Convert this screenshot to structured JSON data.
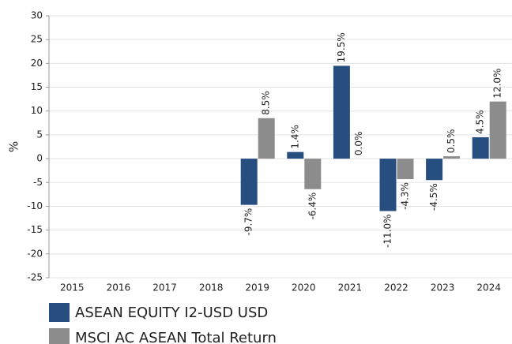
{
  "chart_data": {
    "type": "bar",
    "categories": [
      "2015",
      "2016",
      "2017",
      "2018",
      "2019",
      "2020",
      "2021",
      "2022",
      "2023",
      "2024"
    ],
    "series": [
      {
        "name": "ASEAN EQUITY I2-USD USD",
        "color": "#264f80",
        "values": [
          null,
          null,
          null,
          null,
          -9.7,
          1.4,
          19.5,
          -11.0,
          -4.5,
          4.5
        ],
        "value_labels": [
          null,
          null,
          null,
          null,
          "-9.7%",
          "1.4%",
          "19.5%",
          "-11.0%",
          "-4.5%",
          "4.5%"
        ]
      },
      {
        "name": "MSCI AC ASEAN Total Return",
        "color": "#8c8c8c",
        "values": [
          null,
          null,
          null,
          null,
          8.5,
          -6.4,
          0.0,
          -4.3,
          0.5,
          12.0
        ],
        "value_labels": [
          null,
          null,
          null,
          null,
          "8.5%",
          "-6.4%",
          "0.0%",
          "-4.3%",
          "0.5%",
          "12.0%"
        ]
      }
    ],
    "y_label": "%",
    "ylim": [
      -25,
      30
    ],
    "yticks": [
      -25,
      -20,
      -15,
      -10,
      -5,
      0,
      5,
      10,
      15,
      20,
      25,
      30
    ],
    "grid": true,
    "legend": "bottom"
  }
}
